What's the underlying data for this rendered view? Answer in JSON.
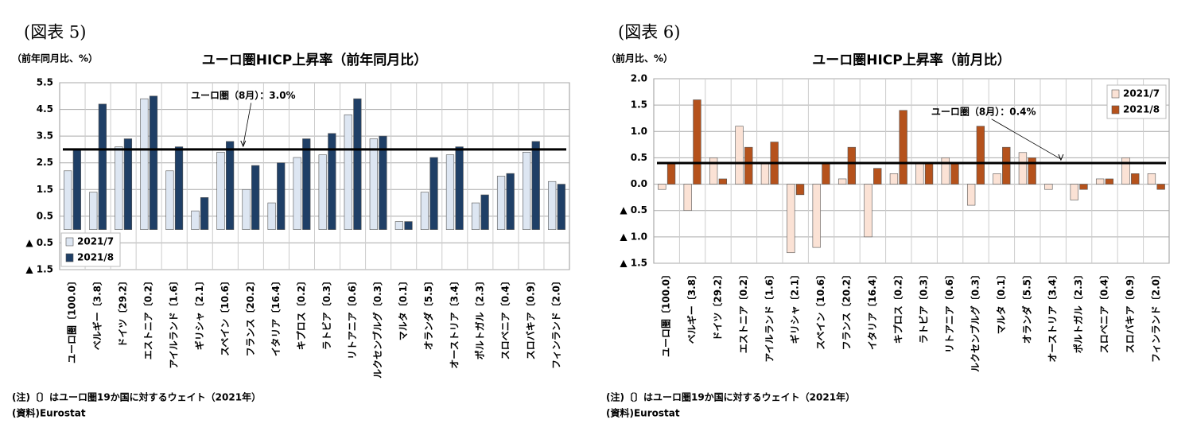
{
  "chart_data": [
    {
      "type": "bar",
      "figure_label": "(図表 5)",
      "title": "ユーロ圏HICP上昇率（前年同月比）",
      "y_label": "（前年同月比、%）",
      "categories": [
        "ユーロ圏〔100.0〕",
        "ベルギー〔3.8〕",
        "ドイツ〔29.2〕",
        "エストニア〔0.2〕",
        "アイルランド〔1.6〕",
        "ギリシャ〔2.1〕",
        "スペイン〔10.6〕",
        "フランス〔20.2〕",
        "イタリア〔16.4〕",
        "キプロス〔0.2〕",
        "ラトビア〔0.3〕",
        "リトアニア〔0.6〕",
        "ルクセンブルグ〔0.3〕",
        "マルタ〔0.1〕",
        "オランダ〔5.5〕",
        "オーストリア〔3.4〕",
        "ポルトガル〔2.3〕",
        "スロベニア〔0.4〕",
        "スロバキア〔0.9〕",
        "フィンランド〔2.0〕"
      ],
      "series": [
        {
          "name": "2021/7",
          "color": "#dde6f2",
          "values": [
            2.2,
            1.4,
            3.1,
            4.9,
            2.2,
            0.7,
            2.9,
            1.5,
            1.0,
            2.7,
            2.8,
            4.3,
            3.4,
            0.3,
            1.4,
            2.8,
            1.0,
            2.0,
            2.9,
            1.8
          ]
        },
        {
          "name": "2021/8",
          "color": "#1f3f66",
          "values": [
            3.0,
            4.7,
            3.4,
            5.0,
            3.1,
            1.2,
            3.3,
            2.4,
            2.5,
            3.4,
            3.6,
            4.9,
            3.5,
            0.3,
            2.7,
            3.1,
            1.3,
            2.1,
            3.3,
            1.7
          ]
        }
      ],
      "reference": {
        "value": 3.0,
        "label": "ユーロ圏（8月）：3.0%"
      },
      "ylim": [
        -1.5,
        5.5
      ],
      "yticks": [
        {
          "value": -1.5,
          "label": "▲ 1.5"
        },
        {
          "value": -0.5,
          "label": "▲ 0.5"
        },
        0.5,
        1.5,
        2.5,
        3.5,
        4.5,
        5.5
      ],
      "grid": true,
      "legend": "lower left",
      "notes": [
        "(注)〔〕はユーロ圏19か国に対するウェイト（2021年）",
        "(資料)Eurostat"
      ]
    },
    {
      "type": "bar",
      "figure_label": "(図表 6)",
      "title": "ユーロ圏HICP上昇率（前月比）",
      "y_label": "（前月比、%）",
      "categories": [
        "ユーロ圏〔100.0〕",
        "ベルギー〔3.8〕",
        "ドイツ〔29.2〕",
        "エストニア〔0.2〕",
        "アイルランド〔1.6〕",
        "ギリシャ〔2.1〕",
        "スペイン〔10.6〕",
        "フランス〔20.2〕",
        "イタリア〔16.4〕",
        "キプロス〔0.2〕",
        "ラトビア〔0.3〕",
        "リトアニア〔0.6〕",
        "ルクセンブルグ〔0.3〕",
        "マルタ〔0.1〕",
        "オランダ〔5.5〕",
        "オーストリア〔3.4〕",
        "ポルトガル〔2.3〕",
        "スロベニア〔0.4〕",
        "スロバキア〔0.9〕",
        "フィンランド〔2.0〕"
      ],
      "series": [
        {
          "name": "2021/7",
          "color": "#fbe2d5",
          "values": [
            -0.1,
            -0.5,
            0.5,
            1.1,
            0.4,
            -1.3,
            -1.2,
            0.1,
            -1.0,
            0.2,
            0.4,
            0.5,
            -0.4,
            0.2,
            0.6,
            -0.1,
            -0.3,
            0.1,
            0.5,
            0.2
          ]
        },
        {
          "name": "2021/8",
          "color": "#b5521c",
          "values": [
            0.4,
            1.6,
            0.1,
            0.7,
            0.8,
            -0.2,
            0.4,
            0.7,
            0.3,
            1.4,
            0.4,
            0.4,
            1.1,
            0.7,
            0.5,
            0.0,
            -0.1,
            0.1,
            0.2,
            -0.1
          ]
        }
      ],
      "reference": {
        "value": 0.4,
        "label": "ユーロ圏（8月）：0.4%"
      },
      "ylim": [
        -1.5,
        2
      ],
      "yticks": [
        {
          "value": -1.5,
          "label": "▲ 1.5"
        },
        {
          "value": -1,
          "label": "▲ 1.0"
        },
        {
          "value": -0.5,
          "label": "▲ 0.5"
        },
        {
          "value": 0,
          "label": "0.0"
        },
        0.5,
        {
          "value": 1,
          "label": "1.0"
        },
        1.5,
        {
          "value": 2,
          "label": "2.0"
        }
      ],
      "grid": true,
      "legend": "upper right",
      "notes": [
        "(注)〔〕はユーロ圏19か国に対するウェイト（2021年）",
        "(資料)Eurostat"
      ]
    }
  ]
}
